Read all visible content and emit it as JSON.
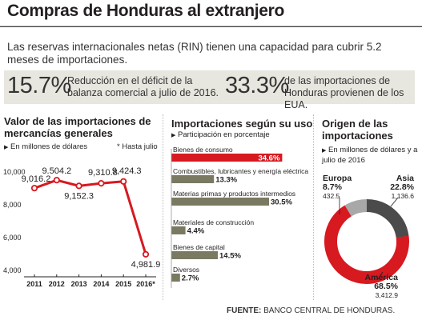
{
  "header": {
    "title": "Compras de Honduras al extranjero",
    "subtitle": "Las reservas internacionales netas (RIN) tienen una capacidad para cubrir 5.2 meses de importaciones."
  },
  "stats": [
    {
      "value": "15.7%",
      "text": "Reducción en el déficit de la balanza comercial a julio de 2016."
    },
    {
      "value": "33.3%",
      "text": "de las importaciones de Honduras provienen de los EUA."
    }
  ],
  "panels": {
    "line": {
      "title": "Valor de las importaciones de mercancías generales",
      "unit_note": "En millones de dólares",
      "footnote": "* Hasta julio"
    },
    "bars": {
      "title": "Importaciones según su uso",
      "unit_note": "Participación en porcentaje"
    },
    "donut": {
      "title": "Origen de las importaciones",
      "unit_note": "En millones de dólares y a julio de 2016"
    }
  },
  "colors": {
    "accent_red": "#d71920",
    "bar_gray": "#7a7a63",
    "dark": "#4b4b4b",
    "light": "#a8a8a8",
    "panel_bg": "#e7e6df"
  },
  "icons": {
    "bullet": "triangle-right-icon"
  },
  "chart_data": [
    {
      "type": "line",
      "title": "Valor de las importaciones de mercancías generales",
      "categories": [
        "2011",
        "2012",
        "2013",
        "2014",
        "2015",
        "2016*"
      ],
      "series": [
        {
          "name": "",
          "values": [
            9016.2,
            9504.2,
            9152.3,
            9310.8,
            9424.3,
            4981.9
          ]
        }
      ],
      "value_labels": [
        "9,016.2",
        "9.504.2",
        "9,152.3",
        "9,310.8",
        "9,424.3",
        "4,981.9"
      ],
      "y_ticks": [
        "10,000",
        "8,000",
        "6,000",
        "4,000"
      ],
      "ylim": [
        4000,
        10000
      ],
      "unit": "En millones de dólares",
      "grid": false
    },
    {
      "type": "bar",
      "title": "Importaciones según su uso",
      "categories": [
        "Bienes de consumo",
        "Combustibles, lubricantes y energía eléctrica",
        "Materias primas y productos intermedios",
        "Materiales de construcción",
        "Bienes de capital",
        "Diversos"
      ],
      "values": [
        34.6,
        13.3,
        30.5,
        4.4,
        14.5,
        2.7
      ],
      "value_labels": [
        "34.6%",
        "13.3%",
        "30.5%",
        "4.4%",
        "14.5%",
        "2.7%"
      ],
      "highlight_index": 0
    },
    {
      "type": "pie",
      "title": "Origen de las importaciones",
      "slices": [
        {
          "name": "Asia",
          "percent": 22.8,
          "percent_label": "22.8%",
          "value": 1136.6,
          "value_label": "1,136.6",
          "color": "#4b4b4b"
        },
        {
          "name": "América",
          "percent": 68.5,
          "percent_label": "68.5%",
          "value": 3412.9,
          "value_label": "3,412.9",
          "color": "#d71920"
        },
        {
          "name": "Europa",
          "percent": 8.7,
          "percent_label": "8.7%",
          "value": 432.5,
          "value_label": "432.5",
          "color": "#a8a8a8"
        }
      ]
    }
  ],
  "footer": {
    "label": "FUENTE:",
    "source": "BANCO CENTRAL DE HONDURAS."
  }
}
